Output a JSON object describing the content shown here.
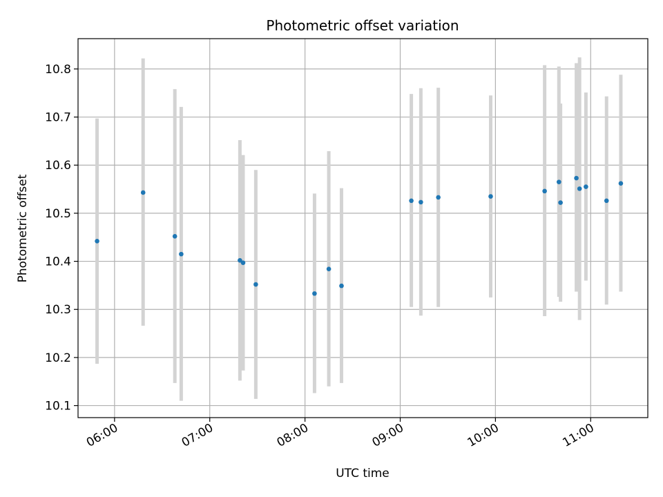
{
  "chart_data": {
    "type": "scatter",
    "title": "Photometric offset variation",
    "xlabel": "UTC time",
    "ylabel": "Photometric offset",
    "xlim": [
      "05:37",
      "11:36"
    ],
    "ylim": [
      10.075,
      10.863
    ],
    "x_ticks": [
      "06:00",
      "07:00",
      "08:00",
      "09:00",
      "10:00",
      "11:00"
    ],
    "y_ticks": [
      10.1,
      10.2,
      10.3,
      10.4,
      10.5,
      10.6,
      10.7,
      10.8
    ],
    "grid": true,
    "point_color": "#1f77b4",
    "errorbar_color": "#d3d3d3",
    "points": [
      {
        "t": "05:49",
        "y": 10.442,
        "low": 10.187,
        "high": 10.697
      },
      {
        "t": "06:18",
        "y": 10.543,
        "low": 10.266,
        "high": 10.822
      },
      {
        "t": "06:38",
        "y": 10.452,
        "low": 10.147,
        "high": 10.758
      },
      {
        "t": "06:42",
        "y": 10.415,
        "low": 10.11,
        "high": 10.721
      },
      {
        "t": "07:19",
        "y": 10.402,
        "low": 10.152,
        "high": 10.652
      },
      {
        "t": "07:21",
        "y": 10.397,
        "low": 10.173,
        "high": 10.621
      },
      {
        "t": "07:29",
        "y": 10.352,
        "low": 10.114,
        "high": 10.59
      },
      {
        "t": "08:06",
        "y": 10.333,
        "low": 10.126,
        "high": 10.541
      },
      {
        "t": "08:15",
        "y": 10.384,
        "low": 10.14,
        "high": 10.629
      },
      {
        "t": "08:23",
        "y": 10.349,
        "low": 10.147,
        "high": 10.552
      },
      {
        "t": "09:07",
        "y": 10.526,
        "low": 10.305,
        "high": 10.748
      },
      {
        "t": "09:13",
        "y": 10.523,
        "low": 10.287,
        "high": 10.76
      },
      {
        "t": "09:24",
        "y": 10.533,
        "low": 10.305,
        "high": 10.761
      },
      {
        "t": "09:57",
        "y": 10.535,
        "low": 10.325,
        "high": 10.745
      },
      {
        "t": "10:31",
        "y": 10.546,
        "low": 10.286,
        "high": 10.808
      },
      {
        "t": "10:40",
        "y": 10.565,
        "low": 10.326,
        "high": 10.805
      },
      {
        "t": "10:41",
        "y": 10.522,
        "low": 10.316,
        "high": 10.728
      },
      {
        "t": "10:51",
        "y": 10.573,
        "low": 10.337,
        "high": 10.812
      },
      {
        "t": "10:53",
        "y": 10.551,
        "low": 10.278,
        "high": 10.824
      },
      {
        "t": "10:57",
        "y": 10.555,
        "low": 10.36,
        "high": 10.751
      },
      {
        "t": "11:10",
        "y": 10.526,
        "low": 10.31,
        "high": 10.743
      },
      {
        "t": "11:19",
        "y": 10.562,
        "low": 10.337,
        "high": 10.788
      }
    ]
  }
}
